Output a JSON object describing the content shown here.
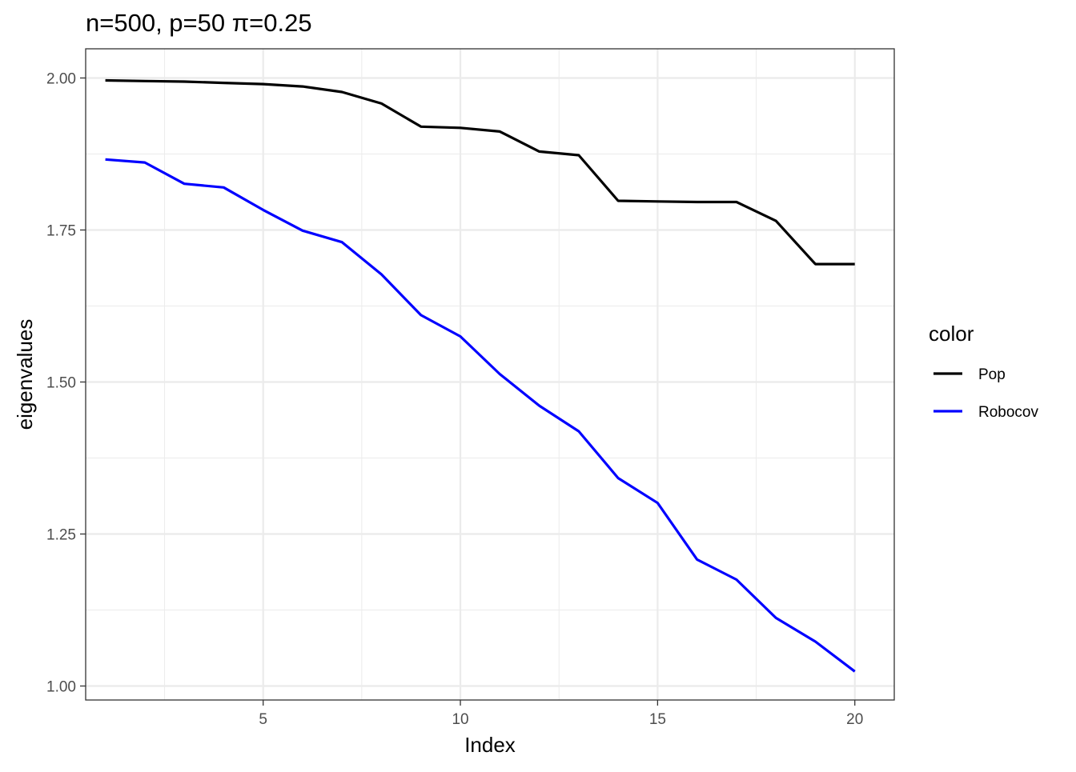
{
  "chart_data": {
    "type": "line",
    "title": "n=500, p=50 π=0.25",
    "xlabel": "Index",
    "ylabel": "eigenvalues",
    "xlim": [
      0.5,
      21.0
    ],
    "ylim": [
      0.977,
      2.048
    ],
    "x_ticks": [
      5,
      10,
      15,
      20
    ],
    "x_tick_labels": [
      "5",
      "10",
      "15",
      "20"
    ],
    "y_ticks": [
      1.0,
      1.25,
      1.5,
      1.75,
      2.0
    ],
    "y_tick_labels": [
      "1.00",
      "1.25",
      "1.50",
      "1.75",
      "2.00"
    ],
    "grid": true,
    "legend_title": "color",
    "legend_position": "right",
    "x": [
      1,
      2,
      3,
      4,
      5,
      6,
      7,
      8,
      9,
      10,
      11,
      12,
      13,
      14,
      15,
      16,
      17,
      18,
      19,
      20
    ],
    "series": [
      {
        "name": "Pop",
        "color": "#000000",
        "values": [
          1.996,
          1.995,
          1.994,
          1.992,
          1.99,
          1.986,
          1.977,
          1.958,
          1.92,
          1.918,
          1.912,
          1.879,
          1.873,
          1.798,
          1.797,
          1.796,
          1.796,
          1.765,
          1.694,
          1.694
        ]
      },
      {
        "name": "Robocov",
        "color": "#0000ff",
        "values": [
          1.866,
          1.861,
          1.826,
          1.82,
          1.783,
          1.749,
          1.73,
          1.677,
          1.61,
          1.575,
          1.513,
          1.461,
          1.419,
          1.342,
          1.301,
          1.208,
          1.175,
          1.112,
          1.073,
          1.024
        ]
      }
    ]
  }
}
